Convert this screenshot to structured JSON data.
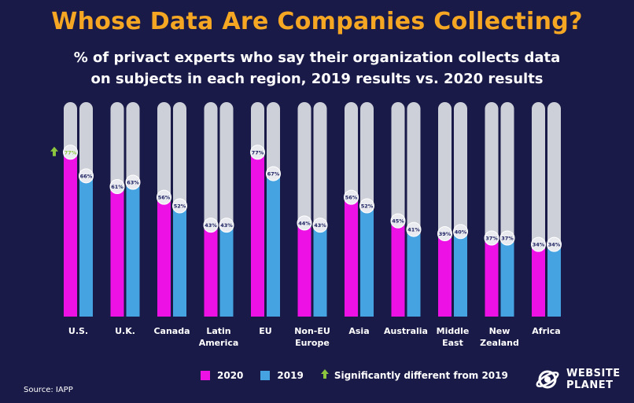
{
  "title": "Whose Data Are Companies Collecting?",
  "subtitle_line1": "% of privact experts who say their organization collects data",
  "subtitle_line2": "on subjects in each region, 2019 results vs. 2020 results",
  "legend": {
    "s2020": "2020",
    "s2019": "2019",
    "significant": "Significantly different from 2019"
  },
  "source": "Source: IAPP",
  "logo": {
    "line1": "WEBSITE",
    "line2": "PLANET"
  },
  "colors": {
    "series2020": "#ee11e6",
    "series2019": "#45a3e2",
    "track": "#cdd0d8",
    "title": "#f5a623",
    "arrow": "#8cc63f",
    "background": "#191a47"
  },
  "chart_data": {
    "type": "bar",
    "categories": [
      "U.S.",
      "U.K.",
      "Canada",
      "Latin America",
      "EU",
      "Non-EU Europe",
      "Asia",
      "Australia",
      "Middle East",
      "New Zealand",
      "Africa"
    ],
    "category_lines": [
      [
        "U.S."
      ],
      [
        "U.K."
      ],
      [
        "Canada"
      ],
      [
        "Latin",
        "America"
      ],
      [
        "EU"
      ],
      [
        "Non-EU",
        "Europe"
      ],
      [
        "Asia"
      ],
      [
        "Australia"
      ],
      [
        "Middle",
        "East"
      ],
      [
        "New",
        "Zealand"
      ],
      [
        "Africa"
      ]
    ],
    "series": [
      {
        "name": "2020",
        "values": [
          77,
          61,
          56,
          43,
          77,
          44,
          56,
          45,
          39,
          37,
          34
        ]
      },
      {
        "name": "2019",
        "values": [
          66,
          63,
          52,
          43,
          67,
          43,
          52,
          41,
          40,
          37,
          34
        ]
      }
    ],
    "value_labels": [
      [
        "77%",
        "61%",
        "56%",
        "43%",
        "77%",
        "44%",
        "56%",
        "45%",
        "39%",
        "37%",
        "34%"
      ],
      [
        "66%",
        "63%",
        "52%",
        "43%",
        "67%",
        "43%",
        "52%",
        "41%",
        "40%",
        "37%",
        "34%"
      ]
    ],
    "significant": [
      true,
      false,
      false,
      false,
      false,
      false,
      false,
      false,
      false,
      false,
      false
    ],
    "ylim": [
      0,
      100
    ],
    "grid": false,
    "legend_position": "bottom-center"
  }
}
